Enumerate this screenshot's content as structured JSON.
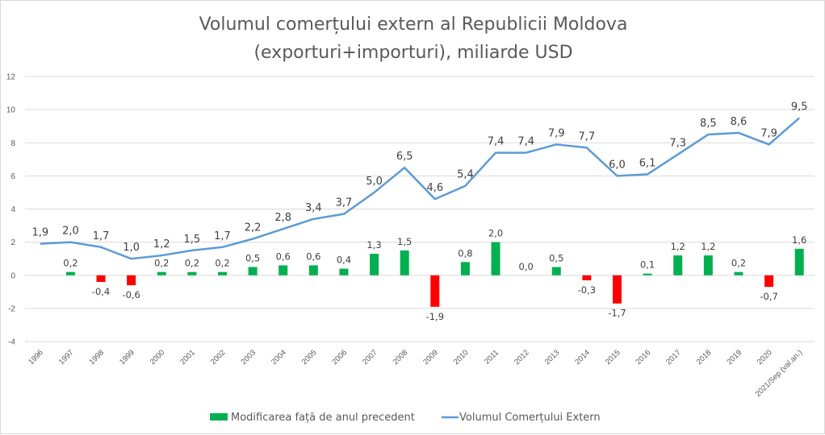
{
  "chart_data": {
    "type": "bar+line",
    "title": [
      "Volumul comerțului extern al Republicii Moldova",
      "(exporturi+importuri), miliarde USD"
    ],
    "xlabel": "",
    "ylabel": "",
    "ylim": [
      -4,
      12
    ],
    "yticks": [
      12,
      10,
      8,
      6,
      4,
      2,
      0,
      -2,
      -4
    ],
    "grid": true,
    "legend_position": "bottom",
    "categories": [
      "1996",
      "1997",
      "1998",
      "1999",
      "2000",
      "2001",
      "2002",
      "2003",
      "2004",
      "2005",
      "2006",
      "2007",
      "2008",
      "2009",
      "2010",
      "2011",
      "2012",
      "2013",
      "2014",
      "2015",
      "2016",
      "2017",
      "2018",
      "2019",
      "2020",
      "2021/Sep (val.an.)"
    ],
    "series": [
      {
        "name": "Modificarea față de anul precedent",
        "type": "bar",
        "color_positive": "#00b050",
        "color_negative": "#ff0000",
        "values": [
          null,
          0.2,
          -0.4,
          -0.6,
          0.2,
          0.2,
          0.2,
          0.5,
          0.6,
          0.6,
          0.4,
          1.3,
          1.5,
          -1.9,
          0.8,
          2.0,
          0.0,
          0.5,
          -0.3,
          -1.7,
          0.1,
          1.2,
          1.2,
          0.2,
          -0.7,
          1.6
        ],
        "labels": [
          "",
          "0,2",
          "-0,4",
          "-0,6",
          "0,2",
          "0,2",
          "0,2",
          "0,5",
          "0,6",
          "0,6",
          "0,4",
          "1,3",
          "1,5",
          "-1,9",
          "0,8",
          "2,0",
          "0,0",
          "0,5",
          "-0,3",
          "-1,7",
          "0,1",
          "1,2",
          "1,2",
          "0,2",
          "-0,7",
          "1,6"
        ]
      },
      {
        "name": "Volumul Comerțului Extern",
        "type": "line",
        "color": "#5b9bd5",
        "values": [
          1.9,
          2.0,
          1.7,
          1.0,
          1.2,
          1.5,
          1.7,
          2.2,
          2.8,
          3.4,
          3.7,
          5.0,
          6.5,
          4.6,
          5.4,
          7.4,
          7.4,
          7.9,
          7.7,
          6.0,
          6.1,
          7.3,
          8.5,
          8.6,
          7.9,
          9.5
        ],
        "labels": [
          "1,9",
          "2,0",
          "1,7",
          "1,0",
          "1,2",
          "1,5",
          "1,7",
          "2,2",
          "2,8",
          "3,4",
          "3,7",
          "5,0",
          "6,5",
          "4,6",
          "5,4",
          "7,4",
          "7,4",
          "7,9",
          "7,7",
          "6,0",
          "6,1",
          "7,3",
          "8,5",
          "8,6",
          "7,9",
          "9,5"
        ]
      }
    ]
  }
}
